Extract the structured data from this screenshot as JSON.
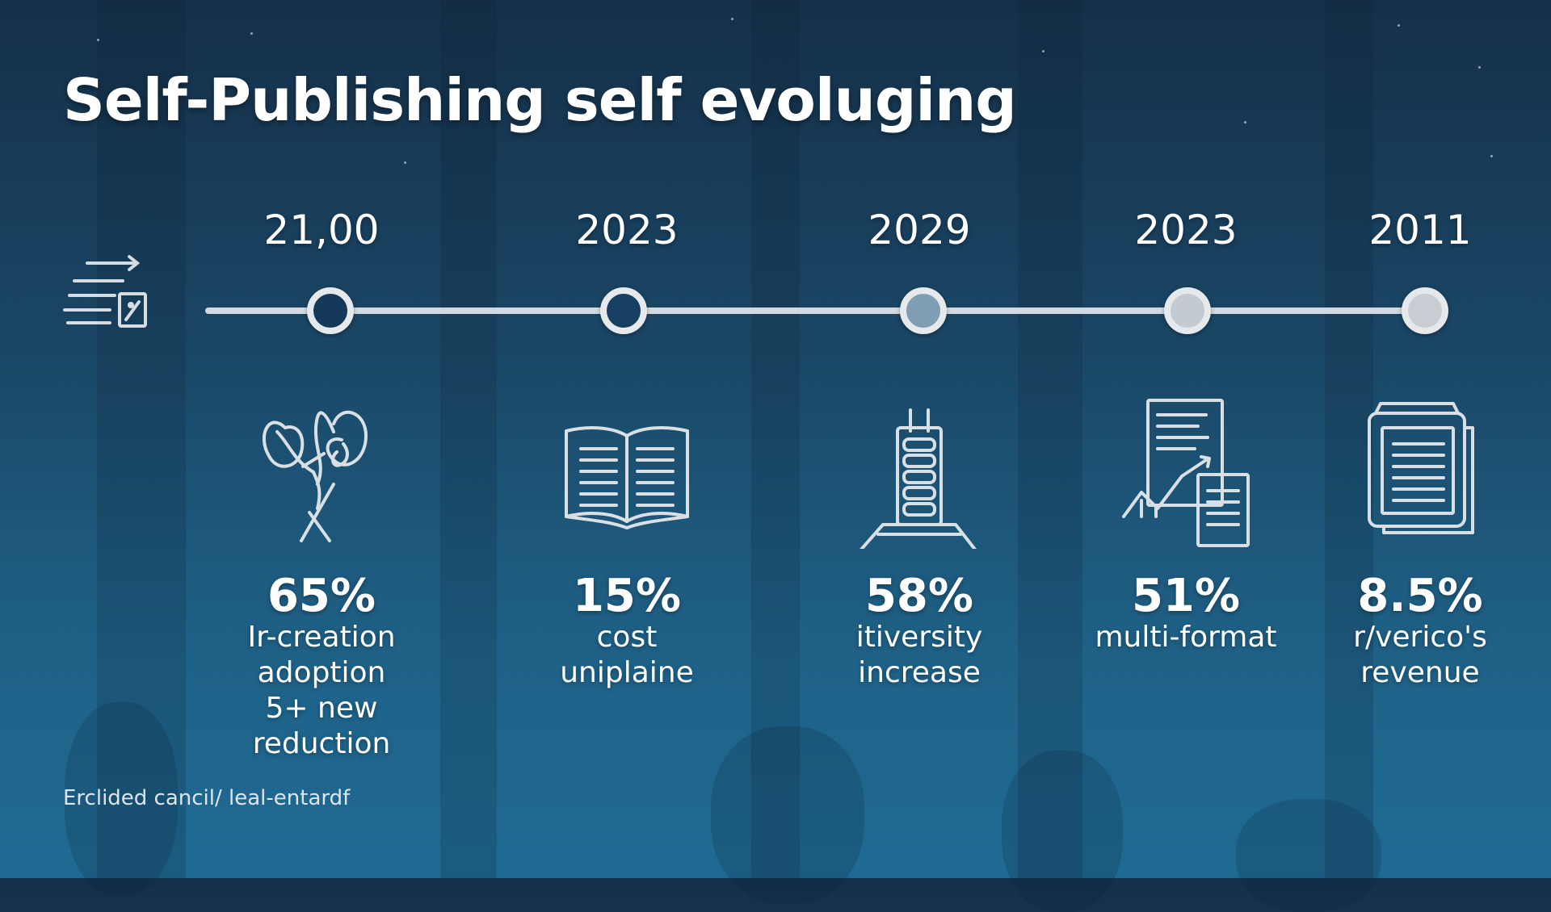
{
  "title": "Self-Publishing self evoluging",
  "footer": "Erclided cancil/ leal-entardf",
  "colors": {
    "background_top": "#15304a",
    "background_bottom": "#1f6a93",
    "line": "#d3d9de",
    "node_ring": "#e6e9ec"
  },
  "milestones": [
    {
      "year": "21,00",
      "percent": "65%",
      "lines": [
        "Ir-creation",
        "adoption",
        "5+ new",
        "reduction"
      ],
      "icon": "sketch-doodle-icon",
      "node_fill": "#15395a"
    },
    {
      "year": "2023",
      "percent": "15%",
      "lines": [
        "cost",
        "uniplaine"
      ],
      "icon": "open-book-icon",
      "node_fill": "#173f62"
    },
    {
      "year": "2029",
      "percent": "58%",
      "lines": [
        "itiversity",
        "increase"
      ],
      "icon": "printing-press-icon",
      "node_fill": "#7f9db3"
    },
    {
      "year": "2023",
      "percent": "51%",
      "lines": [
        "multi-format"
      ],
      "icon": "document-chart-icon",
      "node_fill": "#c3cbd2"
    },
    {
      "year": "2011",
      "percent": "8.5%",
      "lines": [
        "r/verico's",
        "revenue"
      ],
      "icon": "stacked-pages-icon",
      "node_fill": "#c7cdd2"
    }
  ]
}
